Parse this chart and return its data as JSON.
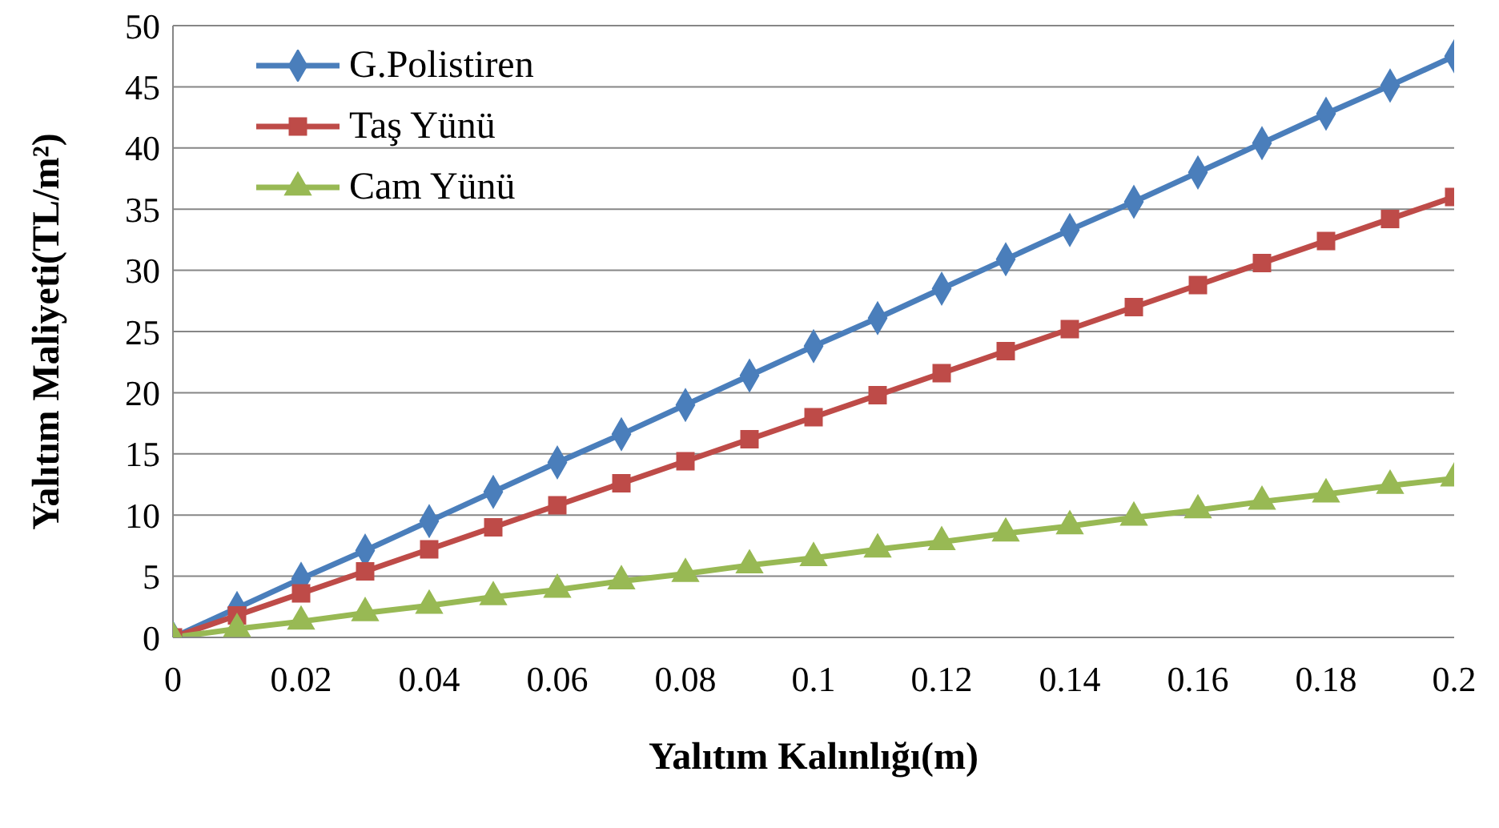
{
  "chart_data": {
    "type": "line",
    "xlabel": "Yalıtım Kalınlığı(m)",
    "ylabel": "Yalıtım Maliyeti(TL/m²)",
    "x": [
      0,
      0.01,
      0.02,
      0.03,
      0.04,
      0.05,
      0.06,
      0.07,
      0.08,
      0.09,
      0.1,
      0.11,
      0.12,
      0.13,
      0.14,
      0.15,
      0.16,
      0.17,
      0.18,
      0.19,
      0.2
    ],
    "series": [
      {
        "name": "G.Polistiren",
        "color": "#4a7ebb",
        "marker": "diamond",
        "values": [
          0,
          2.4,
          4.8,
          7.1,
          9.5,
          11.9,
          14.3,
          16.6,
          19,
          21.4,
          23.8,
          26.1,
          28.5,
          30.9,
          33.3,
          35.6,
          38,
          40.4,
          42.8,
          45.1,
          47.5
        ]
      },
      {
        "name": "Taş Yünü",
        "color": "#be4b48",
        "marker": "square",
        "values": [
          0,
          1.8,
          3.6,
          5.4,
          7.2,
          9,
          10.8,
          12.6,
          14.4,
          16.2,
          18,
          19.8,
          21.6,
          23.4,
          25.2,
          27,
          28.8,
          30.6,
          32.4,
          34.2,
          36
        ]
      },
      {
        "name": "Cam Yünü",
        "color": "#98b954",
        "marker": "triangle",
        "values": [
          0,
          0.7,
          1.3,
          2,
          2.6,
          3.3,
          3.9,
          4.6,
          5.2,
          5.9,
          6.5,
          7.2,
          7.8,
          8.5,
          9.1,
          9.8,
          10.4,
          11.1,
          11.7,
          12.4,
          13
        ]
      }
    ],
    "xlim": [
      0,
      0.2
    ],
    "xticks": [
      0,
      0.02,
      0.04,
      0.06,
      0.08,
      0.1,
      0.12,
      0.14,
      0.16,
      0.18,
      0.2
    ],
    "ylim": [
      0,
      50
    ],
    "yticks": [
      0,
      5,
      10,
      15,
      20,
      25,
      30,
      35,
      40,
      45,
      50
    ],
    "grid": "y",
    "legend": "top left",
    "line_style": "solid"
  }
}
